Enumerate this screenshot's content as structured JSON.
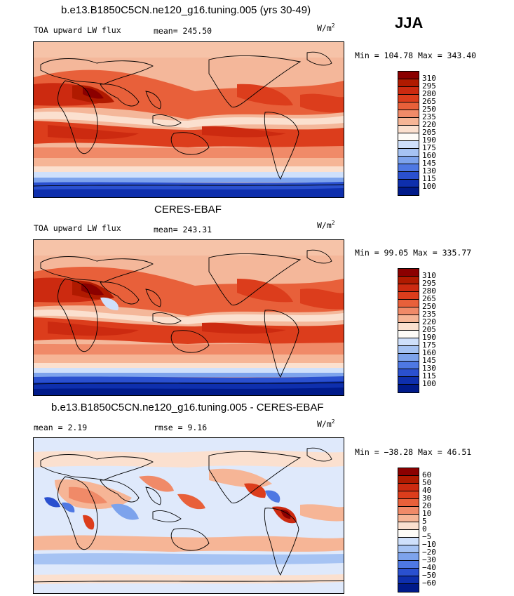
{
  "season": "JJA",
  "panels": [
    {
      "title": "b.e13.B1850C5CN.ne120_g16.tuning.005 (yrs 30-49)",
      "left_label": "TOA upward LW flux",
      "center_label": "mean= 245.50",
      "units": "W/m",
      "units_exp": "2",
      "minmax": "Min = 104.78 Max = 343.40",
      "ticks": [
        "310",
        "295",
        "280",
        "265",
        "250",
        "235",
        "220",
        "205",
        "190",
        "175",
        "160",
        "145",
        "130",
        "115",
        "100"
      ],
      "colors": [
        "#8b0000",
        "#b01a00",
        "#cc2a10",
        "#dc3d1c",
        "#e8603a",
        "#f08a68",
        "#f6b596",
        "#fbe0cf",
        "#fdfbf7",
        "#cfe0fb",
        "#a6c3f3",
        "#7da3ec",
        "#4e78e3",
        "#2a50cf",
        "#0e2fad",
        "#001a8a"
      ]
    },
    {
      "title": "CERES-EBAF",
      "left_label": "TOA upward LW flux",
      "center_label": "mean= 243.31",
      "units": "W/m",
      "units_exp": "2",
      "minmax": "Min =  99.05 Max = 335.77",
      "ticks": [
        "310",
        "295",
        "280",
        "265",
        "250",
        "235",
        "220",
        "205",
        "190",
        "175",
        "160",
        "145",
        "130",
        "115",
        "100"
      ],
      "colors": [
        "#8b0000",
        "#b01a00",
        "#cc2a10",
        "#dc3d1c",
        "#e8603a",
        "#f08a68",
        "#f6b596",
        "#fbe0cf",
        "#fdfbf7",
        "#cfe0fb",
        "#a6c3f3",
        "#7da3ec",
        "#4e78e3",
        "#2a50cf",
        "#0e2fad",
        "#001a8a"
      ]
    },
    {
      "title": "b.e13.B1850C5CN.ne120_g16.tuning.005 - CERES-EBAF",
      "left_label": "mean =   2.19",
      "center_label": "rmse =   9.16",
      "units": "W/m",
      "units_exp": "2",
      "minmax": "Min = −38.28 Max =  46.51",
      "ticks": [
        "60",
        "50",
        "40",
        "30",
        "20",
        "10",
        "5",
        "0",
        "−5",
        "−10",
        "−20",
        "−30",
        "−40",
        "−50",
        "−60"
      ],
      "colors": [
        "#8b0000",
        "#b01a00",
        "#cc2a10",
        "#dc3d1c",
        "#e8603a",
        "#f08a68",
        "#f6b596",
        "#fbe0cf",
        "#fdfbf7",
        "#cfe0fb",
        "#a6c3f3",
        "#7da3ec",
        "#4e78e3",
        "#2a50cf",
        "#0e2fad",
        "#001a8a"
      ]
    }
  ]
}
